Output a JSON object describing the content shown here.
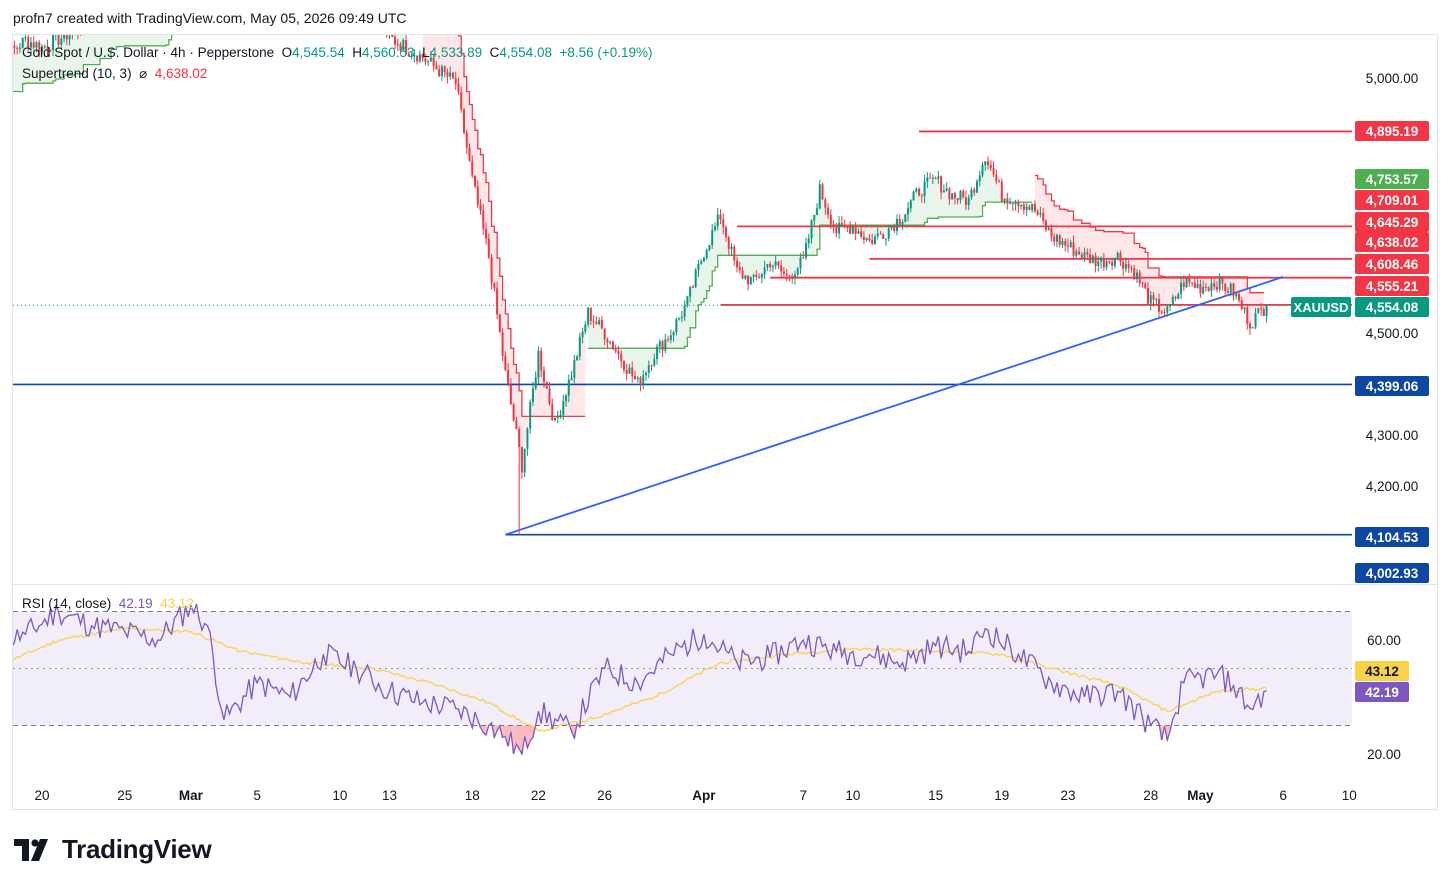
{
  "header": {
    "author_line": "profn7 created with TradingView.com, May 05, 2026 09:49 UTC"
  },
  "legend": {
    "symbol_line": "Gold Spot / U.S. Dollar · 4h · Pepperstone",
    "o_key": "O",
    "o_val": "4,545.54",
    "h_key": "H",
    "h_val": "4,560.53",
    "l_key": "L",
    "l_val": "4,533.89",
    "c_key": "C",
    "c_val": "4,554.08",
    "change": "+8.56 (+0.19%)",
    "supertrend_label": "Supertrend (10, 3)",
    "supertrend_symbol": "⌀",
    "supertrend_value": "4,638.02",
    "rsi_label": "RSI (14, close)",
    "rsi_value": "42.19",
    "rsi_ma_value": "43.12"
  },
  "brand": {
    "name": "TradingView"
  },
  "colors": {
    "up": "#089981",
    "down": "#f23645",
    "trendline": "#2962ff",
    "hline_navy": "#0d47a1",
    "resistance": "#f23645",
    "st_up": "#4caf50",
    "st_down": "#f23645",
    "rsi": "#7e57c2",
    "rsi_ma": "#f9d24a",
    "rsi_band": "#7e57c2"
  },
  "chart_data": [
    {
      "type": "candlestick",
      "symbol": "XAUUSD",
      "title": "Gold Spot / U.S. Dollar · 4h · Pepperstone",
      "y_axis": {
        "ticks": [
          4200,
          4300,
          4500,
          5000
        ],
        "tick_labels": [
          "4,200.00",
          "4,300.00",
          "4,500.00",
          "5,000.00"
        ]
      },
      "x_axis": {
        "ticks": [
          "2026-02-20",
          "2026-02-25",
          "2026-03-01",
          "2026-03-05",
          "2026-03-10",
          "2026-03-13",
          "2026-03-18",
          "2026-03-22",
          "2026-03-26",
          "2026-04-01",
          "2026-04-07",
          "2026-04-10",
          "2026-04-15",
          "2026-04-19",
          "2026-04-23",
          "2026-04-28",
          "2026-05-01",
          "2026-05-06",
          "2026-05-10"
        ],
        "tick_labels": [
          "20",
          "25",
          "Mar",
          "5",
          "10",
          "13",
          "18",
          "22",
          "26",
          "Apr",
          "7",
          "10",
          "15",
          "19",
          "23",
          "28",
          "May",
          "6",
          "10"
        ]
      },
      "last_price": {
        "label": "XAUUSD",
        "value": "4,554.08"
      },
      "price_tags": [
        {
          "value": 4895.19,
          "label": "4,895.19",
          "color": "#f23645"
        },
        {
          "value": 4753.57,
          "label": "4,753.57",
          "color": "#4caf50"
        },
        {
          "value": 4709.01,
          "label": "4,709.01",
          "color": "#f23645"
        },
        {
          "value": 4645.29,
          "label": "4,645.29",
          "color": "#f23645"
        },
        {
          "value": 4638.02,
          "label": "4,638.02",
          "color": "#f23645"
        },
        {
          "value": 4608.46,
          "label": "4,608.46",
          "color": "#f23645"
        },
        {
          "value": 4555.21,
          "label": "4,555.21",
          "color": "#f23645"
        },
        {
          "value": 4554.08,
          "label": "4,554.08",
          "color": "#089981"
        },
        {
          "value": 4399.06,
          "label": "4,399.06",
          "color": "#0d47a1"
        },
        {
          "value": 4104.53,
          "label": "4,104.53",
          "color": "#0d47a1"
        },
        {
          "value": 4002.93,
          "label": "4,002.93",
          "color": "#0d47a1"
        }
      ],
      "horizontal_lines": [
        {
          "value": 4399.06,
          "from": "2026-02-17",
          "to": "2026-05-06"
        },
        {
          "value": 4104.53,
          "from": "2026-03-20",
          "to": "2026-05-06"
        },
        {
          "value": 4895.19,
          "from": "2026-04-14",
          "to": "2026-05-06"
        },
        {
          "value": 4709.01,
          "from": "2026-04-03",
          "to": "2026-05-06"
        },
        {
          "value": 4645.29,
          "from": "2026-04-11",
          "to": "2026-05-06"
        },
        {
          "value": 4608.46,
          "from": "2026-04-05",
          "to": "2026-05-06"
        },
        {
          "value": 4555.21,
          "from": "2026-04-02",
          "to": "2026-05-06"
        }
      ],
      "trendline": {
        "from": {
          "date": "2026-03-20",
          "value": 4104.53
        },
        "to": {
          "date": "2026-05-06",
          "value": 4610
        }
      },
      "price_path": [
        [
          "2026-02-17",
          5020
        ],
        [
          "2026-02-19",
          5075
        ],
        [
          "2026-02-20",
          5060
        ],
        [
          "2026-02-23",
          5110
        ],
        [
          "2026-02-25",
          5150
        ],
        [
          "2026-02-27",
          5120
        ],
        [
          "2026-03-01",
          5260
        ],
        [
          "2026-03-03",
          5150
        ],
        [
          "2026-03-05",
          5180
        ],
        [
          "2026-03-08",
          5160
        ],
        [
          "2026-03-10",
          5190
        ],
        [
          "2026-03-12",
          5130
        ],
        [
          "2026-03-13",
          5080
        ],
        [
          "2026-03-15",
          5040
        ],
        [
          "2026-03-17",
          4990
        ],
        [
          "2026-03-18",
          4800
        ],
        [
          "2026-03-19",
          4650
        ],
        [
          "2026-03-20",
          4420
        ],
        [
          "2026-03-21",
          4240
        ],
        [
          "2026-03-22",
          4460
        ],
        [
          "2026-03-23",
          4320
        ],
        [
          "2026-03-24",
          4420
        ],
        [
          "2026-03-25",
          4540
        ],
        [
          "2026-03-26",
          4500
        ],
        [
          "2026-03-27",
          4450
        ],
        [
          "2026-03-28",
          4400
        ],
        [
          "2026-03-29",
          4460
        ],
        [
          "2026-03-30",
          4500
        ],
        [
          "2026-03-31",
          4560
        ],
        [
          "2026-04-01",
          4660
        ],
        [
          "2026-04-02",
          4730
        ],
        [
          "2026-04-03",
          4620
        ],
        [
          "2026-04-04",
          4600
        ],
        [
          "2026-04-05",
          4640
        ],
        [
          "2026-04-06",
          4610
        ],
        [
          "2026-04-07",
          4640
        ],
        [
          "2026-04-08",
          4780
        ],
        [
          "2026-04-09",
          4700
        ],
        [
          "2026-04-10",
          4710
        ],
        [
          "2026-04-11",
          4680
        ],
        [
          "2026-04-12",
          4700
        ],
        [
          "2026-04-13",
          4730
        ],
        [
          "2026-04-14",
          4780
        ],
        [
          "2026-04-15",
          4800
        ],
        [
          "2026-04-16",
          4770
        ],
        [
          "2026-04-17",
          4760
        ],
        [
          "2026-04-18",
          4850
        ],
        [
          "2026-04-19",
          4770
        ],
        [
          "2026-04-20",
          4760
        ],
        [
          "2026-04-21",
          4740
        ],
        [
          "2026-04-22",
          4690
        ],
        [
          "2026-04-23",
          4670
        ],
        [
          "2026-04-24",
          4650
        ],
        [
          "2026-04-25",
          4640
        ],
        [
          "2026-04-26",
          4650
        ],
        [
          "2026-04-27",
          4620
        ],
        [
          "2026-04-28",
          4560
        ],
        [
          "2026-04-29",
          4540
        ],
        [
          "2026-04-30",
          4600
        ],
        [
          "2026-05-01",
          4590
        ],
        [
          "2026-05-02",
          4600
        ],
        [
          "2026-05-03",
          4580
        ],
        [
          "2026-05-04",
          4520
        ],
        [
          "2026-05-05",
          4554
        ]
      ]
    },
    {
      "type": "line",
      "title": "RSI (14, close)",
      "y_axis": {
        "ticks": [
          20,
          60
        ],
        "tick_labels": [
          "20.00",
          "60.00"
        ],
        "band": [
          30,
          70
        ]
      },
      "series": [
        {
          "name": "RSI",
          "last": 42.19,
          "points": [
            [
              "2026-02-17",
              58
            ],
            [
              "2026-02-19",
              62
            ],
            [
              "2026-02-21",
              70
            ],
            [
              "2026-02-23",
              65
            ],
            [
              "2026-02-25",
              63
            ],
            [
              "2026-02-27",
              60
            ],
            [
              "2026-03-01",
              72
            ],
            [
              "2026-03-02",
              65
            ],
            [
              "2026-03-03",
              32
            ],
            [
              "2026-03-05",
              45
            ],
            [
              "2026-03-07",
              40
            ],
            [
              "2026-03-09",
              55
            ],
            [
              "2026-03-11",
              50
            ],
            [
              "2026-03-13",
              42
            ],
            [
              "2026-03-15",
              38
            ],
            [
              "2026-03-17",
              36
            ],
            [
              "2026-03-19",
              30
            ],
            [
              "2026-03-20",
              26
            ],
            [
              "2026-03-21",
              20
            ],
            [
              "2026-03-22",
              35
            ],
            [
              "2026-03-24",
              28
            ],
            [
              "2026-03-26",
              50
            ],
            [
              "2026-03-28",
              45
            ],
            [
              "2026-03-30",
              55
            ],
            [
              "2026-04-01",
              62
            ],
            [
              "2026-04-03",
              52
            ],
            [
              "2026-04-05",
              54
            ],
            [
              "2026-04-07",
              60
            ],
            [
              "2026-04-09",
              56
            ],
            [
              "2026-04-11",
              55
            ],
            [
              "2026-04-13",
              52
            ],
            [
              "2026-04-15",
              58
            ],
            [
              "2026-04-17",
              56
            ],
            [
              "2026-04-18",
              64
            ],
            [
              "2026-04-20",
              55
            ],
            [
              "2026-04-22",
              45
            ],
            [
              "2026-04-24",
              40
            ],
            [
              "2026-04-26",
              42
            ],
            [
              "2026-04-28",
              30
            ],
            [
              "2026-04-29",
              25
            ],
            [
              "2026-04-30",
              45
            ],
            [
              "2026-05-02",
              48
            ],
            [
              "2026-05-03",
              44
            ],
            [
              "2026-05-04",
              36
            ],
            [
              "2026-05-05",
              42.19
            ]
          ]
        },
        {
          "name": "RSI-based MA",
          "last": 43.12,
          "points": [
            [
              "2026-02-17",
              50
            ],
            [
              "2026-02-21",
              60
            ],
            [
              "2026-02-25",
              64
            ],
            [
              "2026-03-01",
              63
            ],
            [
              "2026-03-04",
              56
            ],
            [
              "2026-03-08",
              52
            ],
            [
              "2026-03-12",
              50
            ],
            [
              "2026-03-16",
              44
            ],
            [
              "2026-03-19",
              38
            ],
            [
              "2026-03-22",
              28
            ],
            [
              "2026-03-25",
              32
            ],
            [
              "2026-03-29",
              40
            ],
            [
              "2026-04-02",
              52
            ],
            [
              "2026-04-06",
              55
            ],
            [
              "2026-04-10",
              57
            ],
            [
              "2026-04-15",
              56
            ],
            [
              "2026-04-19",
              55
            ],
            [
              "2026-04-22",
              50
            ],
            [
              "2026-04-26",
              44
            ],
            [
              "2026-04-29",
              35
            ],
            [
              "2026-05-02",
              42
            ],
            [
              "2026-05-05",
              43.12
            ]
          ]
        }
      ]
    }
  ]
}
